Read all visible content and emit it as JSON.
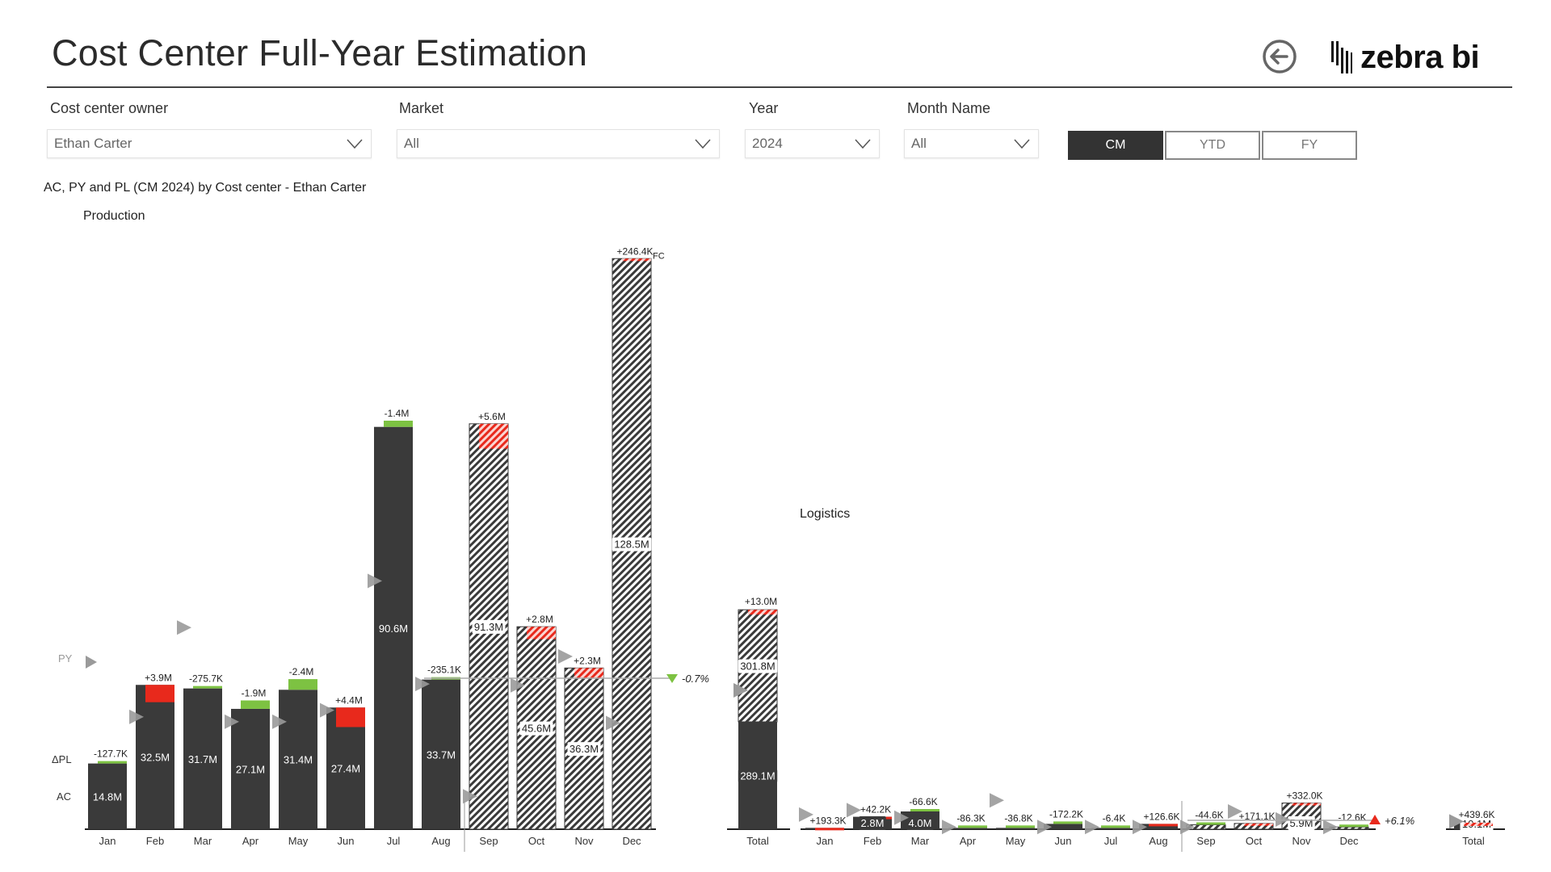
{
  "header": {
    "title": "Cost Center Full-Year Estimation",
    "back_icon": "arrow-left-circle-icon",
    "logo_text": "zebra bi"
  },
  "filters": [
    {
      "label": "Cost center owner",
      "value": "Ethan Carter"
    },
    {
      "label": "Market",
      "value": "All"
    },
    {
      "label": "Year",
      "value": "2024"
    },
    {
      "label": "Month Name",
      "value": "All"
    }
  ],
  "period_toggle": {
    "options": [
      "CM",
      "YTD",
      "FY"
    ],
    "selected": "CM"
  },
  "subtitle": "AC, PY and PL (CM 2024) by Cost center - Ethan Carter",
  "row_labels": {
    "py": "PY",
    "dpl": "ΔPL",
    "ac": "AC"
  },
  "colors": {
    "actual": "#3a3a3a",
    "unfavorable": "#e8291c",
    "favorable": "#7dc242",
    "py_marker": "#9a9a9a",
    "hatch": "#3a3a3a"
  },
  "chart_data": [
    {
      "title": "Production",
      "type": "bar",
      "categories": [
        "Jan",
        "Feb",
        "Mar",
        "Apr",
        "May",
        "Jun",
        "Jul",
        "Aug",
        "Sep",
        "Oct",
        "Nov",
        "Dec"
      ],
      "unit": "M",
      "values": [
        14.8,
        32.5,
        31.7,
        27.1,
        31.4,
        27.4,
        90.6,
        33.7,
        91.3,
        45.6,
        36.3,
        128.5
      ],
      "value_labels": [
        "14.8M",
        "32.5M",
        "31.7M",
        "27.1M",
        "31.4M",
        "27.4M",
        "90.6M",
        "33.7M",
        "91.3M",
        "45.6M",
        "36.3M",
        "128.5M"
      ],
      "forecast": [
        false,
        false,
        false,
        false,
        false,
        false,
        false,
        false,
        true,
        true,
        true,
        true
      ],
      "delta_pl": [
        -0.1277,
        3.9,
        -0.2757,
        -1.9,
        -2.4,
        4.4,
        -1.4,
        -0.2351,
        5.6,
        2.8,
        2.3,
        0.2464
      ],
      "delta_labels": [
        "-127.7K",
        "+3.9M",
        "-275.7K",
        "-1.9M",
        "-2.4M",
        "+4.4M",
        "-1.4M",
        "-235.1K",
        "+5.6M",
        "+2.8M",
        "+2.3M",
        "+246.4K"
      ],
      "forecast_tag": "FC",
      "py": [
        null,
        25.3,
        45.4,
        24.2,
        24.2,
        26.8,
        55.9,
        32.7,
        7.4,
        32.4,
        38.9,
        23.9
      ],
      "reference": {
        "label": "-0.7%",
        "direction": "down",
        "level": 34
      },
      "total": {
        "label": "Total",
        "ac": 289.1,
        "ac_label": "289.1M",
        "fc": 301.8,
        "fc_label": "301.8M",
        "delta": 13.0,
        "delta_label": "+13.0M",
        "py": 374
      }
    },
    {
      "title": "Logistics",
      "type": "bar",
      "categories": [
        "Jan",
        "Feb",
        "Mar",
        "Apr",
        "May",
        "Jun",
        "Jul",
        "Aug",
        "Sep",
        "Oct",
        "Nov",
        "Dec"
      ],
      "unit": "M",
      "values": [
        0.3,
        2.8,
        4.0,
        0.3,
        0.3,
        1.2,
        0.3,
        1.2,
        1.0,
        1.3,
        5.9,
        0.5
      ],
      "value_labels": [
        "",
        "2.8M",
        "4.0M",
        "",
        "",
        "",
        "",
        "",
        "",
        "",
        "5.9M",
        ""
      ],
      "forecast": [
        false,
        false,
        false,
        false,
        false,
        false,
        false,
        false,
        true,
        true,
        true,
        true
      ],
      "delta_pl": [
        0.1933,
        0.0422,
        -0.0666,
        -0.0863,
        -0.0368,
        -0.1722,
        -0.0064,
        0.1266,
        -0.0446,
        0.1711,
        0.332,
        -0.0126
      ],
      "delta_labels": [
        "+193.3K",
        "+42.2K",
        "-66.6K",
        "-86.3K",
        "-36.8K",
        "-172.2K",
        "-6.4K",
        "+126.6K",
        "-44.6K",
        "+171.1K",
        "+332.0K",
        "-12.6K"
      ],
      "py": [
        3.3,
        4.3,
        2.6,
        0.5,
        6.5,
        0.5,
        0.5,
        0.5,
        0.5,
        4.0,
        2.2,
        0.5
      ],
      "reference": {
        "label": "+6.1%",
        "direction": "up",
        "level": 2
      },
      "total": {
        "label": "Total",
        "ac": 10.1,
        "ac_label": "10.1M",
        "delta": 0.4396,
        "delta_label": "+439.6K",
        "py": 12
      }
    }
  ]
}
